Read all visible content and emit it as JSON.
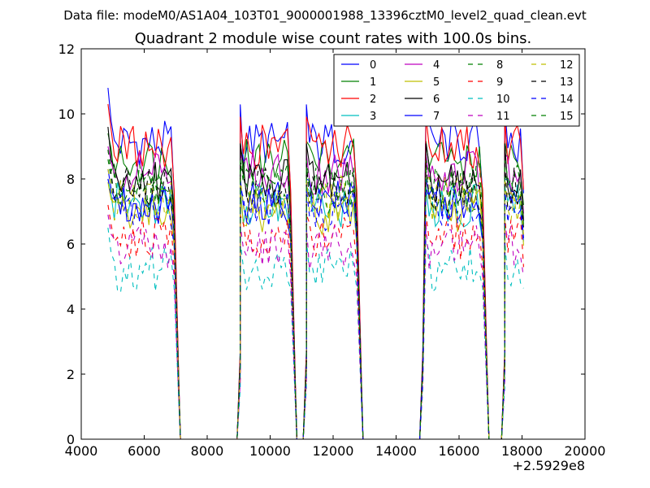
{
  "suptitle": "Data file: modeM0/AS1A04_103T01_9000001988_13396cztM0_level2_quad_clean.evt",
  "chart_data": {
    "type": "line",
    "title": "Quadrant 2 module wise count rates with 100.0s bins.",
    "xlabel": "",
    "ylabel": "",
    "x_offset_label": "+2.5929e8",
    "xlim": [
      4000,
      20000
    ],
    "ylim": [
      0,
      12
    ],
    "x_ticks": [
      4000,
      6000,
      8000,
      10000,
      12000,
      14000,
      16000,
      18000,
      20000
    ],
    "y_ticks": [
      0,
      2,
      4,
      6,
      8,
      10,
      12
    ],
    "grid": false,
    "legend_position": "top-right",
    "segments": [
      {
        "start": 4850,
        "end": 6950,
        "step": 100
      },
      {
        "start": 9050,
        "end": 10650,
        "step": 100
      },
      {
        "start": 11150,
        "end": 12750,
        "step": 100
      },
      {
        "start": 14950,
        "end": 16750,
        "step": 100
      },
      {
        "start": 17450,
        "end": 18050,
        "step": 100
      }
    ],
    "zero_spans": [
      [
        7150,
        8950
      ],
      [
        10850,
        11050
      ],
      [
        12950,
        14750
      ],
      [
        16950,
        17350
      ]
    ],
    "series": [
      {
        "name": "0",
        "color": "#0000ff",
        "dash": "solid",
        "level": 9.1,
        "first": 10.8,
        "last": 6.9
      },
      {
        "name": "1",
        "color": "#008000",
        "dash": "solid",
        "level": 8.6,
        "first": 9.4,
        "last": 6.6
      },
      {
        "name": "2",
        "color": "#ff0000",
        "dash": "solid",
        "level": 9.0,
        "first": 10.3,
        "last": 7.1
      },
      {
        "name": "3",
        "color": "#00bfbf",
        "dash": "solid",
        "level": 7.2,
        "first": 8.0,
        "last": 5.6
      },
      {
        "name": "4",
        "color": "#bf00bf",
        "dash": "solid",
        "level": 8.2,
        "first": 9.0,
        "last": 6.4
      },
      {
        "name": "5",
        "color": "#bfbf00",
        "dash": "solid",
        "level": 7.0,
        "first": 7.9,
        "last": 5.5
      },
      {
        "name": "6",
        "color": "#000000",
        "dash": "solid",
        "level": 7.9,
        "first": 9.6,
        "last": 6.2
      },
      {
        "name": "7",
        "color": "#0000ff",
        "dash": "solid",
        "level": 7.3,
        "first": 8.3,
        "last": 5.7
      },
      {
        "name": "8",
        "color": "#008000",
        "dash": "dashed",
        "level": 7.6,
        "first": 8.6,
        "last": 5.9
      },
      {
        "name": "9",
        "color": "#ff0000",
        "dash": "dashed",
        "level": 6.2,
        "first": 7.2,
        "last": 4.9
      },
      {
        "name": "10",
        "color": "#00bfbf",
        "dash": "dashed",
        "level": 5.2,
        "first": 6.5,
        "last": 4.4
      },
      {
        "name": "11",
        "color": "#bf00bf",
        "dash": "dashed",
        "level": 5.9,
        "first": 6.9,
        "last": 4.6
      },
      {
        "name": "12",
        "color": "#bfbf00",
        "dash": "dashed",
        "level": 7.4,
        "first": 8.3,
        "last": 5.8
      },
      {
        "name": "13",
        "color": "#000000",
        "dash": "dashed",
        "level": 7.7,
        "first": 8.9,
        "last": 6.0
      },
      {
        "name": "14",
        "color": "#0000ff",
        "dash": "dashed",
        "level": 7.1,
        "first": 8.0,
        "last": 5.5
      },
      {
        "name": "15",
        "color": "#008000",
        "dash": "dashed",
        "level": 7.8,
        "first": 8.9,
        "last": 6.1
      }
    ]
  }
}
